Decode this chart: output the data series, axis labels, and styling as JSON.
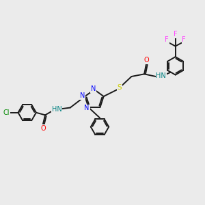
{
  "background_color": "#ebebeb",
  "bond_color": "#1a1a1a",
  "N_color": "#0000ff",
  "O_color": "#ff0000",
  "S_color": "#cccc00",
  "Cl_color": "#008800",
  "F_color": "#ff44ff",
  "H_color": "#008080",
  "lw": 1.4,
  "xlim": [
    0,
    10
  ],
  "ylim": [
    0,
    10
  ]
}
